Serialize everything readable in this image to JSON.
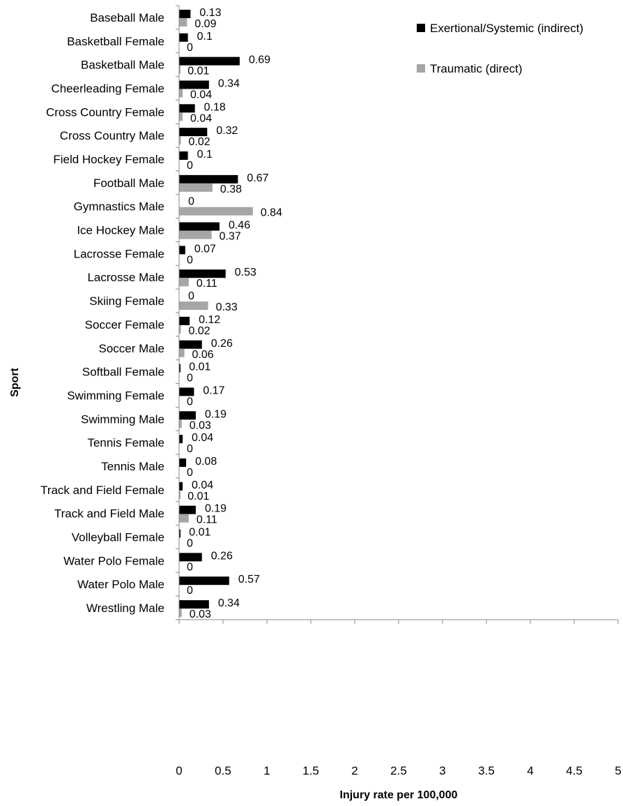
{
  "chart_data": {
    "type": "bar",
    "orientation": "horizontal",
    "title": "",
    "xlabel": "Injury rate per 100,000",
    "ylabel": "Sport",
    "xlim": [
      0,
      5
    ],
    "xticks": [
      "0",
      "0.5",
      "1",
      "1.5",
      "2",
      "2.5",
      "3",
      "3.5",
      "4",
      "4.5",
      "5"
    ],
    "grid": false,
    "legend_position": "top-right",
    "categories": [
      "Baseball Male",
      "Basketball Female",
      "Basketball Male",
      "Cheerleading Female",
      "Cross Country Female",
      "Cross Country Male",
      "Field Hockey Female",
      "Football Male",
      "Gymnastics Male",
      "Ice Hockey Male",
      "Lacrosse Female",
      "Lacrosse Male",
      "Skiing Female",
      "Soccer Female",
      "Soccer Male",
      "Softball Female",
      "Swimming Female",
      "Swimming Male",
      "Tennis Female",
      "Tennis Male",
      "Track and Field Female",
      "Track and Field Male",
      "Volleyball Female",
      "Water Polo Female",
      "Water Polo Male",
      "Wrestling Male"
    ],
    "series": [
      {
        "name": "Exertional/Systemic (indirect)",
        "color": "#000000",
        "values": [
          0.13,
          0.1,
          0.69,
          0.34,
          0.18,
          0.32,
          0.1,
          0.67,
          0,
          0.46,
          0.07,
          0.53,
          0,
          0.12,
          0.26,
          0.01,
          0.17,
          0.19,
          0.04,
          0.08,
          0.04,
          0.19,
          0.01,
          0.26,
          0.57,
          0.34
        ]
      },
      {
        "name": "Traumatic (direct)",
        "color": "#a6a6a6",
        "values": [
          0.09,
          0,
          0.01,
          0.04,
          0.04,
          0.02,
          0,
          0.38,
          0.84,
          0.37,
          0,
          0.11,
          0.33,
          0.02,
          0.06,
          0,
          0,
          0.03,
          0,
          0,
          0.01,
          0.11,
          0,
          0,
          0,
          0.03
        ]
      }
    ]
  }
}
